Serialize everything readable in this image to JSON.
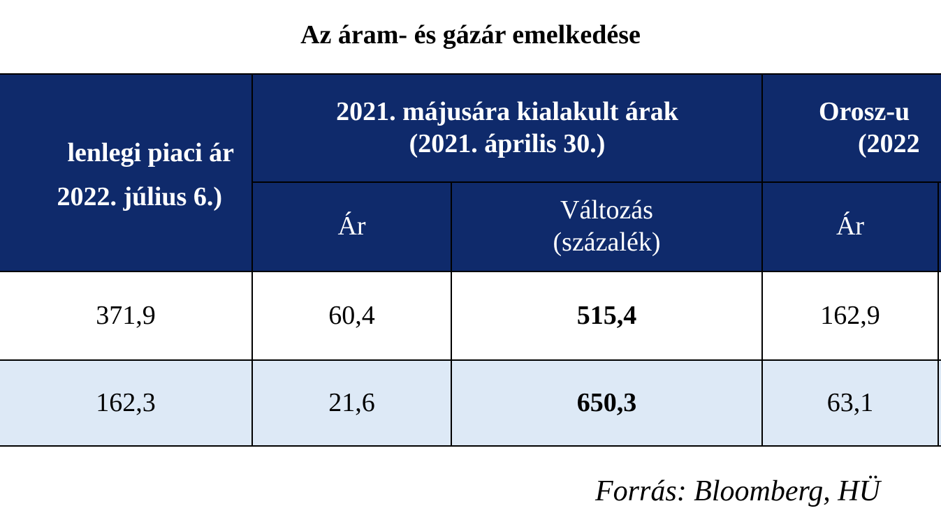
{
  "title": "Az áram- és gázár emelkedése",
  "table": {
    "header": {
      "current": [
        "lenlegi piaci ár",
        "2022. július 6.)"
      ],
      "group1": [
        "2021. májusára kialakult árak",
        "(2021. április 30.)"
      ],
      "group2": [
        "Orosz-u",
        "(2022"
      ],
      "sub": [
        [
          "Ár"
        ],
        [
          "Változás",
          "(százalék)"
        ],
        [
          "Ár"
        ]
      ]
    },
    "rows": [
      [
        "371,9",
        "60,4",
        "515,4",
        "162,9"
      ],
      [
        "162,3",
        "21,6",
        "650,3",
        "63,1"
      ]
    ]
  },
  "source": "Forrás: Bloomberg, HÜ"
}
